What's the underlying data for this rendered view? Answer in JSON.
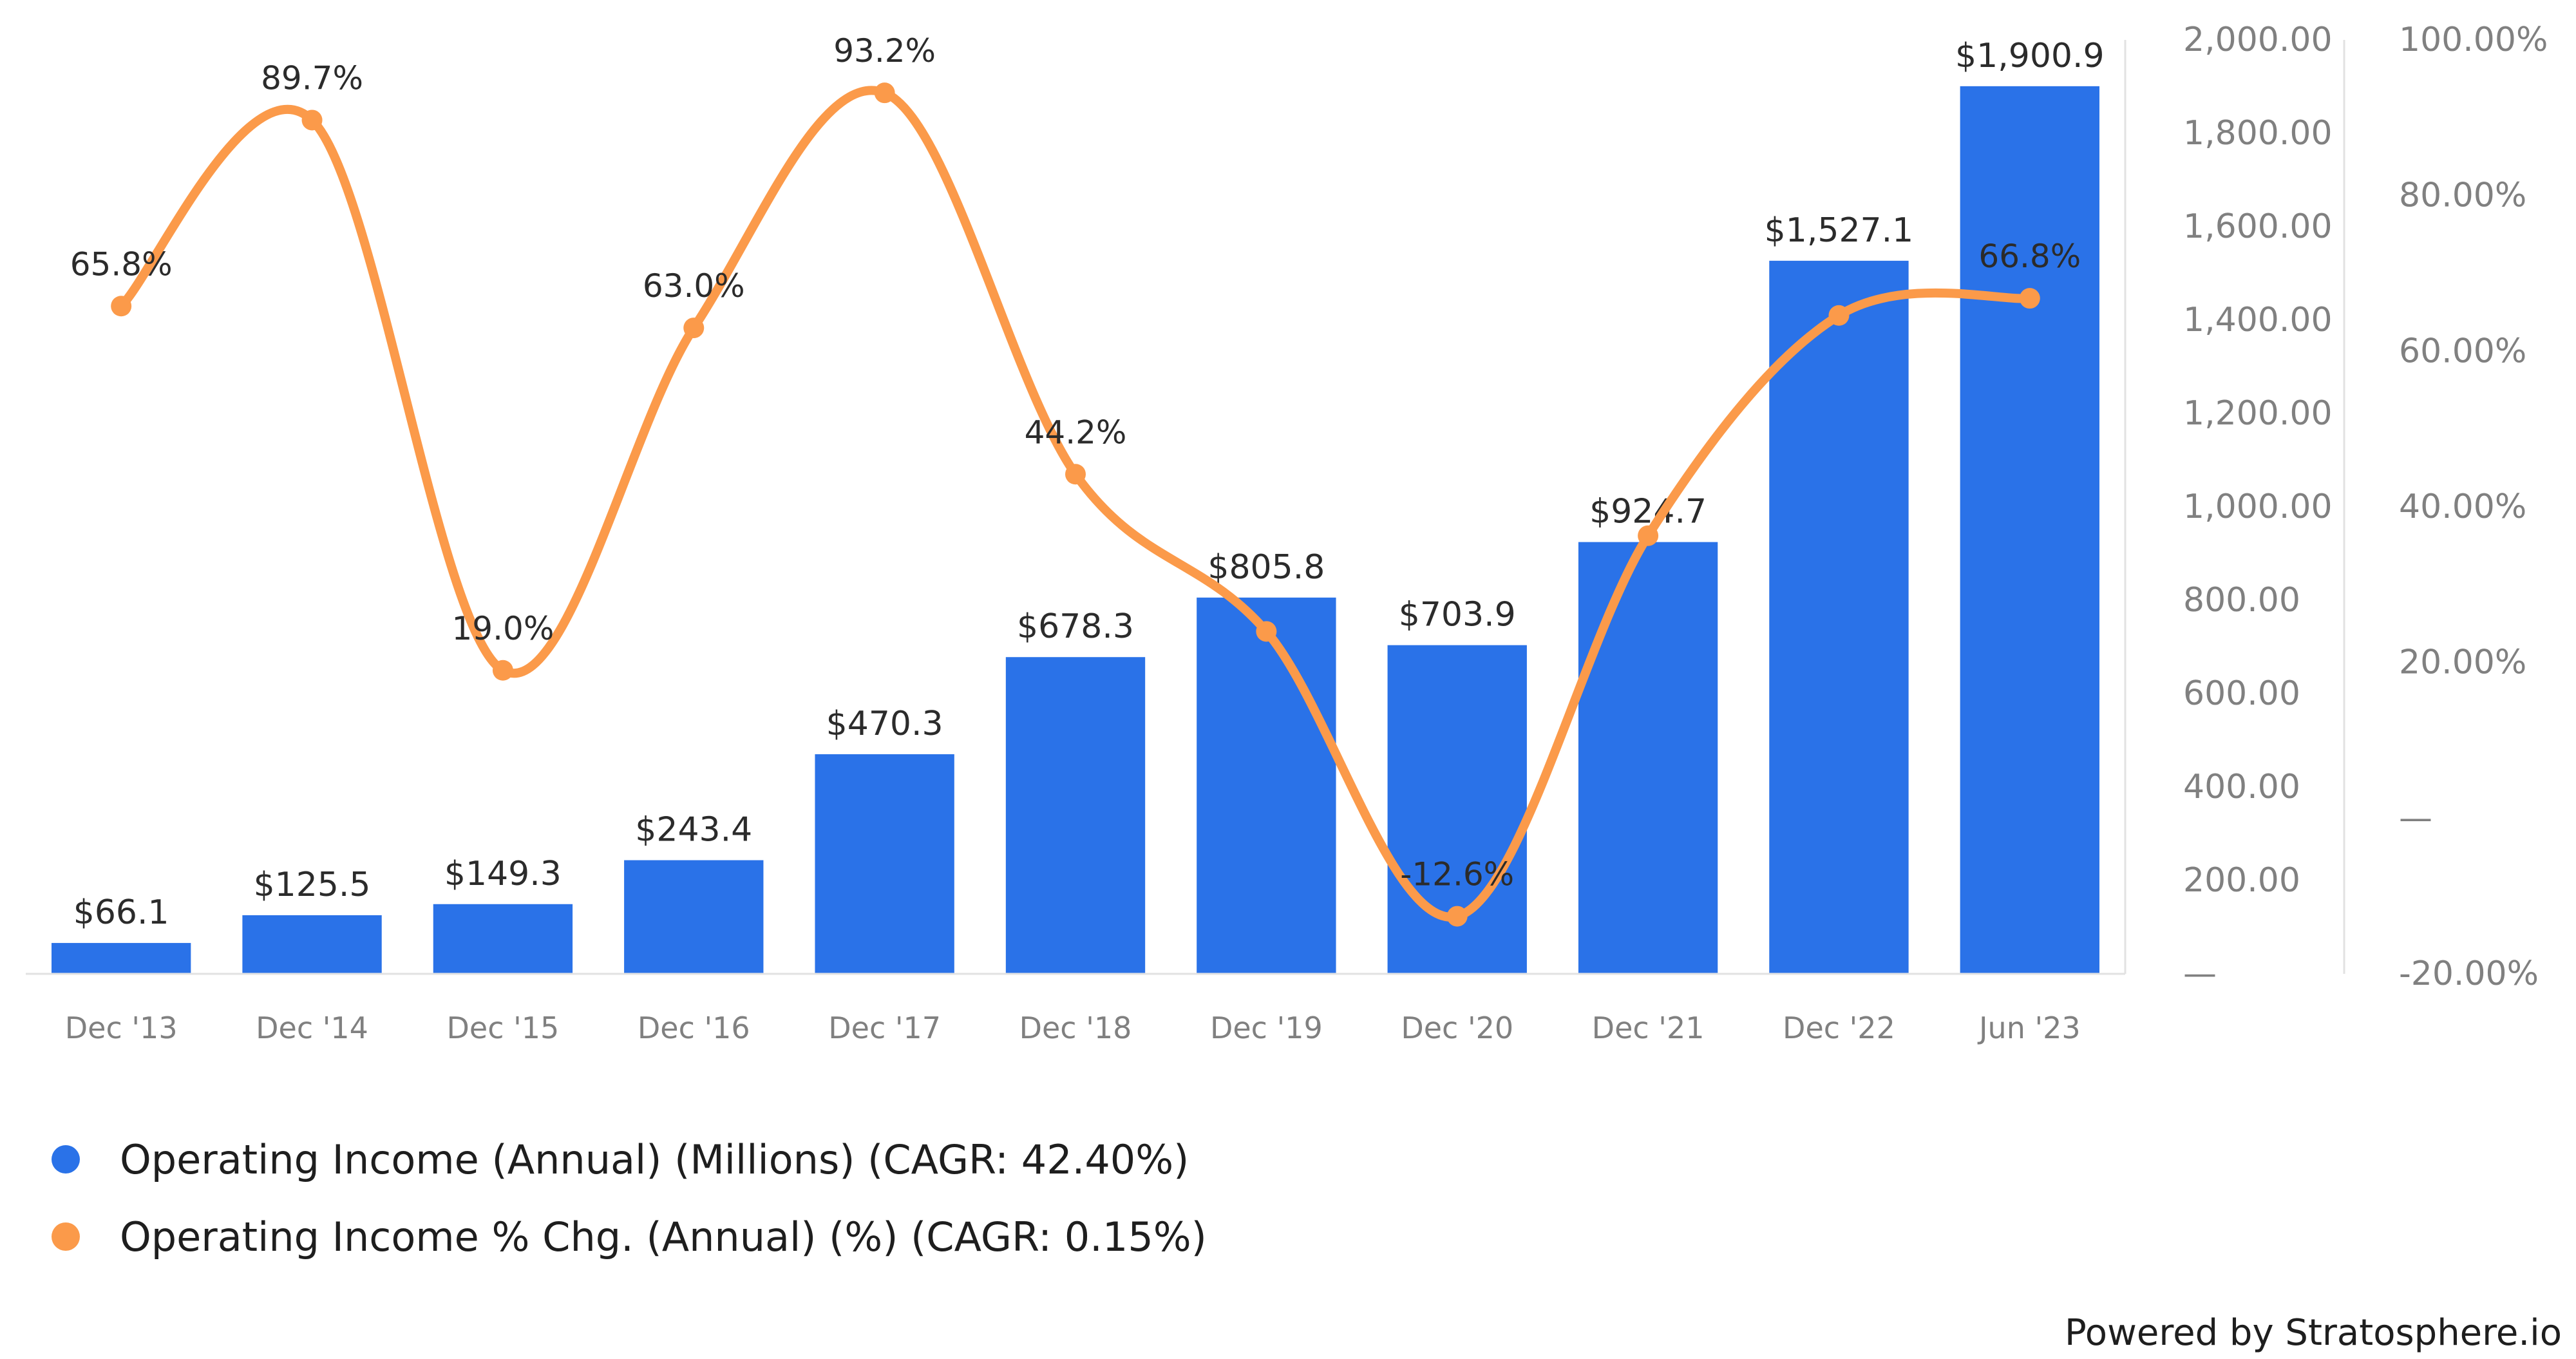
{
  "chart_data": {
    "type": "bar",
    "categories": [
      "Dec '13",
      "Dec '14",
      "Dec '15",
      "Dec '16",
      "Dec '17",
      "Dec '18",
      "Dec '19",
      "Dec '20",
      "Dec '21",
      "Dec '22",
      "Jun '23"
    ],
    "series": [
      {
        "name": "Operating Income (Annual) (Millions) (CAGR: 42.40%)",
        "type": "bar",
        "axis": "left",
        "color": "#2a72e8",
        "values": [
          66.1,
          125.5,
          149.3,
          243.4,
          470.3,
          678.3,
          805.8,
          703.9,
          924.7,
          1527.1,
          1900.9
        ],
        "labels": [
          "$66.1",
          "$125.5",
          "$149.3",
          "$243.4",
          "$470.3",
          "$678.3",
          "$805.8",
          "$703.9",
          "$924.7",
          "$1,527.1",
          "$1,900.9"
        ]
      },
      {
        "name": "Operating Income % Chg. (Annual) (%) (CAGR: 0.15%)",
        "type": "line",
        "axis": "right",
        "color": "#fb9a4a",
        "values": [
          65.8,
          89.7,
          19.0,
          63.0,
          93.2,
          44.2,
          24.0,
          -12.6,
          36.3,
          64.6,
          66.8
        ],
        "labels": [
          "65.8%",
          "89.7%",
          "19.0%",
          "63.0%",
          "93.2%",
          "44.2%",
          "",
          "-12.6%",
          "",
          "",
          "66.8%"
        ]
      }
    ],
    "y_left": {
      "ylim": [
        0,
        2000
      ],
      "ticks": [
        0,
        200,
        400,
        600,
        800,
        1000,
        1200,
        1400,
        1600,
        1800,
        2000
      ],
      "tick_labels": [
        "—",
        "200.00",
        "400.00",
        "600.00",
        "800.00",
        "1,000.00",
        "1,200.00",
        "1,400.00",
        "1,600.00",
        "1,800.00",
        "2,000.00"
      ]
    },
    "y_right": {
      "ylim": [
        -20,
        100
      ],
      "ticks": [
        -20,
        0,
        20,
        40,
        60,
        80,
        100
      ],
      "tick_labels": [
        "-20.00%",
        "—",
        "20.00%",
        "40.00%",
        "60.00%",
        "80.00%",
        "100.00%"
      ]
    },
    "grid": false,
    "legend_position": "bottom-left"
  },
  "legend": {
    "items": [
      {
        "label": "Operating Income (Annual) (Millions) (CAGR: 42.40%)",
        "color": "#2a72e8"
      },
      {
        "label": "Operating Income % Chg. (Annual) (%) (CAGR: 0.15%)",
        "color": "#fb9a4a"
      }
    ]
  },
  "footer": {
    "text": "Powered by Stratosphere.io"
  }
}
